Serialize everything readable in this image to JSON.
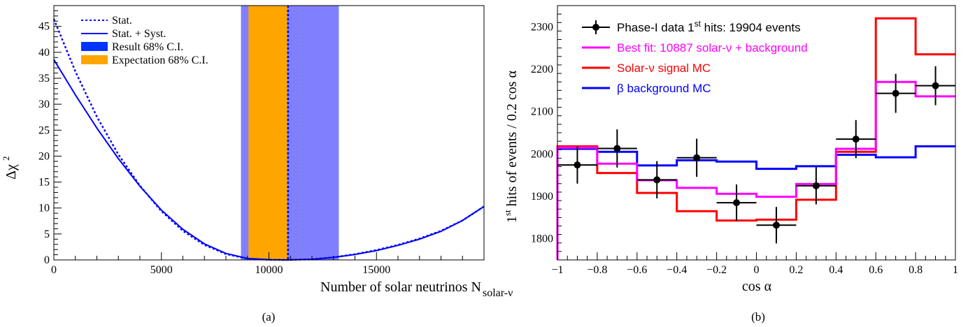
{
  "chart_data": [
    {
      "type": "line",
      "panel_label": "(a)",
      "xlabel": "Number of solar neutrinos N",
      "xlabel_sub": "solar-ν",
      "ylabel": "Δχ",
      "ylabel_sup": "2",
      "xlim": [
        0,
        20000
      ],
      "ylim": [
        0,
        49
      ],
      "x_ticks": [
        0,
        5000,
        10000,
        15000
      ],
      "x_tick_labels": [
        "0",
        "5000",
        "10000",
        "15000"
      ],
      "y_ticks": [
        0,
        5,
        10,
        15,
        20,
        25,
        30,
        35,
        40,
        45
      ],
      "y_tick_labels": [
        "0",
        "5",
        "10",
        "15",
        "20",
        "25",
        "30",
        "35",
        "40",
        "45"
      ],
      "legend": [
        {
          "label": "Stat.",
          "style": "dotted",
          "color": "#0000ff"
        },
        {
          "label": "Stat. + Syst.",
          "style": "solid",
          "color": "#0000ff"
        },
        {
          "label": "Result 68% C.I.",
          "style": "box",
          "color": "#0033ff"
        },
        {
          "label": "Expectation 68% C.I.",
          "style": "box",
          "color": "#ffa500"
        }
      ],
      "series": [
        {
          "name": "Stat.",
          "style": "dotted",
          "color": "#0000ff",
          "x": [
            0,
            1000,
            2000,
            3000,
            4000,
            5000,
            6000,
            7000,
            8000,
            9000,
            10000,
            10887,
            12000,
            13000,
            14000,
            15000,
            16000,
            17000,
            18000,
            19000,
            20000
          ],
          "y": [
            46.4,
            36.3,
            27.6,
            20.3,
            14.3,
            9.4,
            5.6,
            2.9,
            1.15,
            0.24,
            0.03,
            0,
            0.12,
            0.5,
            1.1,
            1.9,
            2.9,
            4.1,
            5.6,
            7.6,
            10.3
          ]
        },
        {
          "name": "Stat. + Syst.",
          "style": "solid",
          "color": "#0000ff",
          "x": [
            0,
            1000,
            2000,
            3000,
            4000,
            5000,
            6000,
            7000,
            8000,
            9000,
            10000,
            10887,
            12000,
            13000,
            14000,
            15000,
            16000,
            17000,
            18000,
            19000,
            20000
          ],
          "y": [
            38.6,
            31.8,
            25.4,
            19.5,
            14.2,
            9.6,
            5.9,
            3.1,
            1.25,
            0.28,
            0.04,
            0,
            0.12,
            0.48,
            1.05,
            1.8,
            2.8,
            4.0,
            5.5,
            7.6,
            10.3
          ]
        }
      ],
      "bands": [
        {
          "name": "Result 68% C.I.",
          "x_range": [
            8700,
            13250
          ],
          "color": "#8080ff"
        },
        {
          "name": "Expectation 68% C.I.",
          "x_range": [
            9050,
            10850
          ],
          "color": "#ffa500"
        }
      ],
      "best_fit_line": 10887
    },
    {
      "type": "line",
      "panel_label": "(b)",
      "xlabel": "cos α",
      "ylabel_pre": "1",
      "ylabel_sup": "st",
      "ylabel_post": " hits of events / 0.2 cos α",
      "xlim": [
        -1,
        1
      ],
      "ylim": [
        1750,
        2350
      ],
      "x_ticks": [
        -1,
        -0.8,
        -0.6,
        -0.4,
        -0.2,
        0,
        0.2,
        0.4,
        0.6,
        0.8,
        1
      ],
      "x_tick_labels": [
        "−1",
        "−0.8",
        "−0.6",
        "−0.4",
        "−0.2",
        "0",
        "0.2",
        "0.4",
        "0.6",
        "0.8",
        "1"
      ],
      "y_ticks": [
        1800,
        1900,
        2000,
        2100,
        2200,
        2300
      ],
      "y_tick_labels": [
        "1800",
        "1900",
        "2000",
        "2100",
        "2200",
        "2300"
      ],
      "bin_edges": [
        -1,
        -0.8,
        -0.6,
        -0.4,
        -0.2,
        0,
        0.2,
        0.4,
        0.6,
        0.8,
        1
      ],
      "legend": [
        {
          "pre": "Phase-I data 1",
          "sup": "st",
          "post": " hits: 19904 events",
          "color": "#000000",
          "style": "marker"
        },
        {
          "pre": "Best fit: 10887 solar-ν + background",
          "sup": "",
          "post": "",
          "color": "#ff00ff",
          "style": "line"
        },
        {
          "pre": "Solar-ν signal MC",
          "sup": "",
          "post": "",
          "color": "#ff0000",
          "style": "line"
        },
        {
          "pre": "β background MC",
          "sup": "",
          "post": "",
          "color": "#0000ff",
          "style": "line"
        }
      ],
      "series": [
        {
          "name": "β background MC",
          "color": "#0000ff",
          "values": [
            2012,
            2005,
            1973,
            1985,
            1982,
            1965,
            1971,
            1998,
            1992,
            2018
          ]
        },
        {
          "name": "Solar-ν signal MC",
          "color": "#ff0000",
          "values": [
            2018,
            1955,
            1908,
            1865,
            1843,
            1845,
            1892,
            2005,
            2320,
            2235
          ]
        },
        {
          "name": "Best fit: 10887 solar-ν + background",
          "color": "#ff00ff",
          "values": [
            2015,
            1977,
            1938,
            1920,
            1906,
            1899,
            1929,
            2012,
            2170,
            2136
          ]
        }
      ],
      "data_points": {
        "name": "Phase-I data 1st hits: 19904 events",
        "x": [
          -0.9,
          -0.7,
          -0.5,
          -0.3,
          -0.1,
          0.1,
          0.3,
          0.5,
          0.7,
          0.9
        ],
        "y": [
          1974,
          2013,
          1939,
          1991,
          1885,
          1832,
          1925,
          2035,
          2143,
          2161
        ],
        "err": [
          44,
          45,
          44,
          45,
          43,
          43,
          44,
          45,
          46,
          46
        ]
      }
    }
  ]
}
